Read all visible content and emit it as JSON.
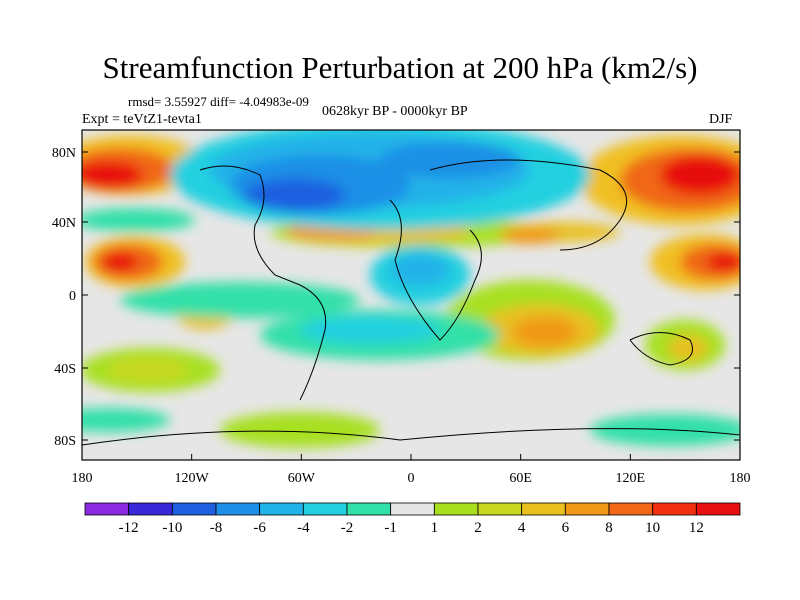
{
  "title": "Streamfunction Perturbation at 200 hPa (km2/s)",
  "stats_line": "rmsd= 3.55927 diff= -4.04983e-09",
  "experiment": "Expt = teVtZ1-tevta1",
  "period": "0628kyr BP - 0000kyr BP",
  "season": "DJF",
  "lat_ticks": [
    "80N",
    "40N",
    "0",
    "40S",
    "80S"
  ],
  "lon_ticks": [
    "180",
    "120W",
    "60W",
    "0",
    "60E",
    "120E",
    "180"
  ],
  "colorbar": {
    "labels": [
      "-12",
      "-10",
      "-8",
      "-6",
      "-4",
      "-2",
      "-1",
      "1",
      "2",
      "4",
      "6",
      "8",
      "10",
      "12"
    ],
    "colors": [
      "#8a2be2",
      "#3a28d8",
      "#1f5fe0",
      "#1e8fe6",
      "#20b2e8",
      "#22d0e0",
      "#30e0a8",
      "#e6e6e6",
      "#a8e020",
      "#c8d820",
      "#e8c020",
      "#f09818",
      "#f06818",
      "#f03010",
      "#e81010"
    ]
  }
}
